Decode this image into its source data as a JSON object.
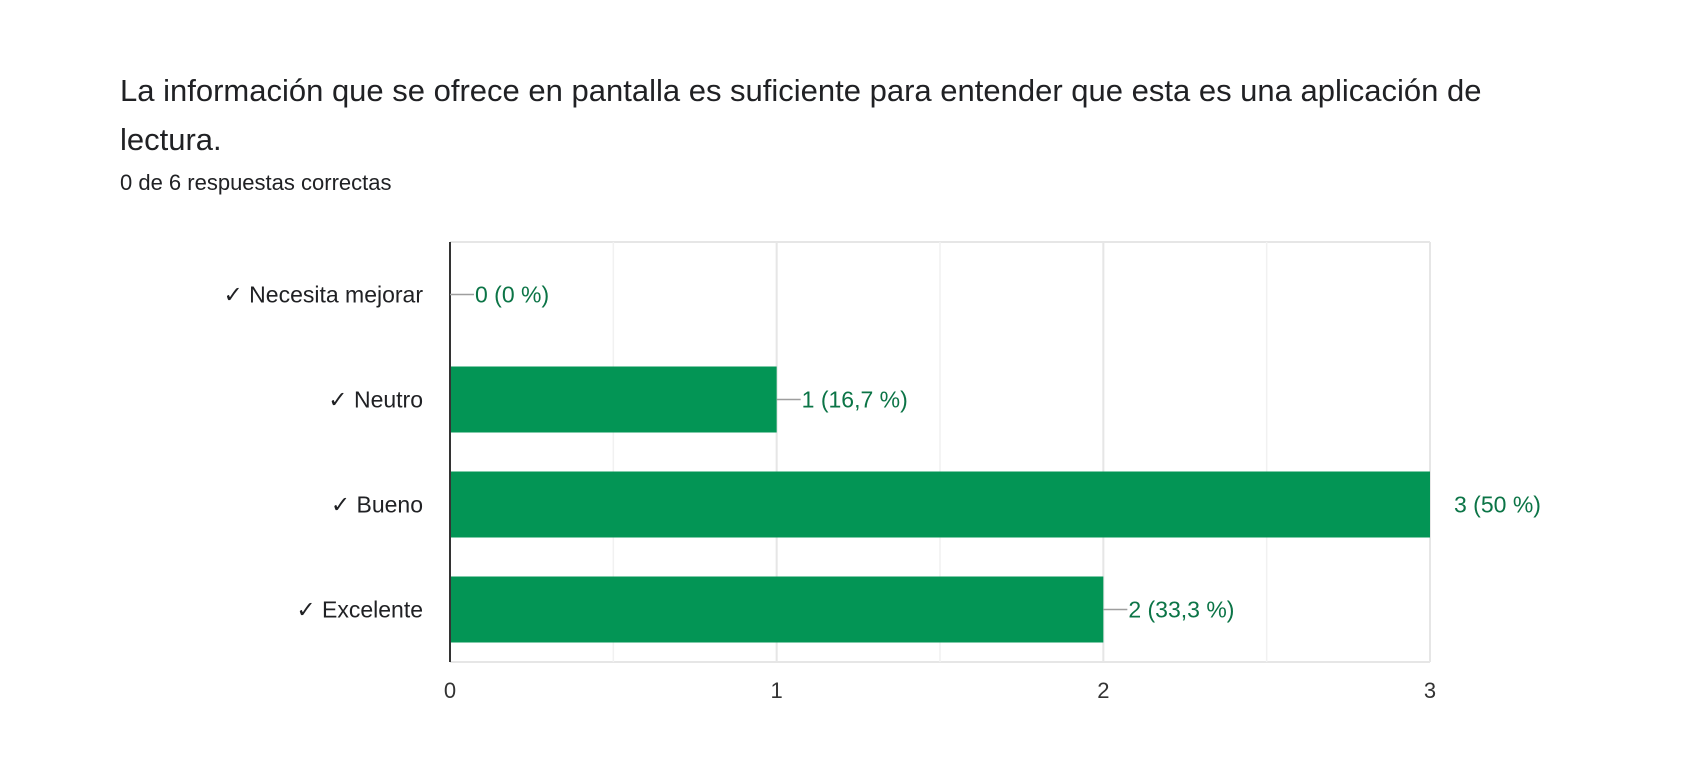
{
  "question": {
    "title": "La información que se ofrece en pantalla es suficiente para entender que esta es una aplicación de lectura.",
    "score_text": "0 de 6 respuestas correctas"
  },
  "colors": {
    "bar": "#039555",
    "label": "#0b7446",
    "grid": "#e6e6e6",
    "axis": "#333333",
    "leader": "#9e9e9e"
  },
  "chart_data": {
    "type": "bar",
    "orientation": "horizontal",
    "categories": [
      "✓ Necesita mejorar",
      "✓ Neutro",
      "✓ Bueno",
      "✓ Excelente"
    ],
    "values": [
      0,
      1,
      3,
      2
    ],
    "data_labels": [
      "0 (0 %)",
      "1 (16,7 %)",
      "3 (50 %)",
      "2 (33,3 %)"
    ],
    "xlim": [
      0,
      3
    ],
    "xticks": [
      0,
      1,
      2,
      3
    ],
    "xtick_labels": [
      "0",
      "1",
      "2",
      "3"
    ],
    "minor_gridlines": [
      0.5,
      1.5,
      2.5
    ],
    "grid": true,
    "legend": "none"
  }
}
